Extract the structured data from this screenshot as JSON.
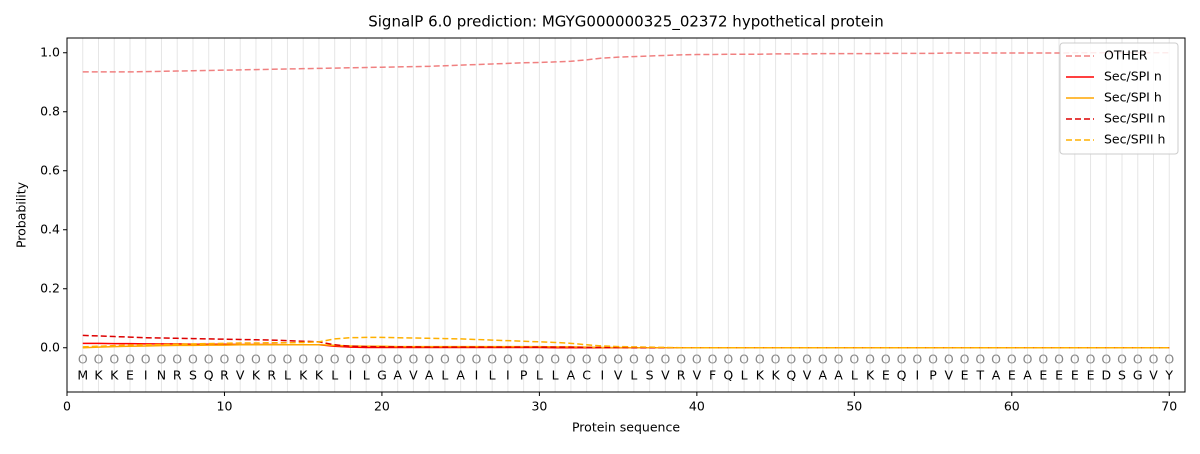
{
  "chart_data": {
    "type": "line",
    "title": "SignalP 6.0 prediction: MGYG000000325_02372 hypothetical protein",
    "x_label": "Protein sequence",
    "y_label": "Probability",
    "x": [
      1,
      2,
      3,
      4,
      5,
      6,
      7,
      8,
      9,
      10,
      11,
      12,
      13,
      14,
      15,
      16,
      17,
      18,
      19,
      20,
      21,
      22,
      23,
      24,
      25,
      26,
      27,
      28,
      29,
      30,
      31,
      32,
      33,
      34,
      35,
      36,
      37,
      38,
      39,
      40,
      41,
      42,
      43,
      44,
      45,
      46,
      47,
      48,
      49,
      50,
      51,
      52,
      53,
      54,
      55,
      56,
      57,
      58,
      59,
      60,
      61,
      62,
      63,
      64,
      65,
      66,
      67,
      68,
      69,
      70
    ],
    "sequence": [
      "M",
      "K",
      "K",
      "E",
      "I",
      "N",
      "R",
      "S",
      "Q",
      "R",
      "V",
      "K",
      "R",
      "L",
      "K",
      "K",
      "L",
      "I",
      "L",
      "G",
      "A",
      "V",
      "A",
      "L",
      "A",
      "I",
      "L",
      "I",
      "P",
      "L",
      "L",
      "A",
      "C",
      "I",
      "V",
      "L",
      "S",
      "V",
      "R",
      "V",
      "F",
      "Q",
      "L",
      "K",
      "K",
      "Q",
      "V",
      "A",
      "A",
      "L",
      "K",
      "E",
      "Q",
      "I",
      "P",
      "V",
      "E",
      "T",
      "A",
      "E",
      "A",
      "E",
      "E",
      "E",
      "E",
      "D",
      "S",
      "G",
      "V",
      "Y"
    ],
    "predicted_labels": [
      "O",
      "O",
      "O",
      "O",
      "O",
      "O",
      "O",
      "O",
      "O",
      "O",
      "O",
      "O",
      "O",
      "O",
      "O",
      "O",
      "O",
      "O",
      "O",
      "O",
      "O",
      "O",
      "O",
      "O",
      "O",
      "O",
      "O",
      "O",
      "O",
      "O",
      "O",
      "O",
      "O",
      "O",
      "O",
      "O",
      "O",
      "O",
      "O",
      "O",
      "O",
      "O",
      "O",
      "O",
      "O",
      "O",
      "O",
      "O",
      "O",
      "O",
      "O",
      "O",
      "O",
      "O",
      "O",
      "O",
      "O",
      "O",
      "O",
      "O",
      "O",
      "O",
      "O",
      "O",
      "O",
      "O",
      "O",
      "O",
      "O",
      "O"
    ],
    "series": [
      {
        "name": "OTHER",
        "color": "#f08080",
        "linestyle": "dashed",
        "values": [
          0.935,
          0.935,
          0.935,
          0.935,
          0.936,
          0.937,
          0.938,
          0.939,
          0.94,
          0.941,
          0.942,
          0.943,
          0.944,
          0.945,
          0.946,
          0.947,
          0.948,
          0.949,
          0.95,
          0.951,
          0.952,
          0.953,
          0.954,
          0.956,
          0.958,
          0.96,
          0.962,
          0.964,
          0.966,
          0.967,
          0.969,
          0.971,
          0.976,
          0.982,
          0.985,
          0.987,
          0.989,
          0.991,
          0.993,
          0.994,
          0.994,
          0.995,
          0.995,
          0.995,
          0.996,
          0.996,
          0.996,
          0.997,
          0.997,
          0.997,
          0.997,
          0.998,
          0.998,
          0.998,
          0.998,
          0.999,
          0.999,
          0.999,
          0.999,
          0.999,
          0.999,
          0.999,
          0.999,
          1.0,
          1.0,
          1.0,
          1.0,
          1.0,
          1.0,
          1.0
        ]
      },
      {
        "name": "Sec/SPI n",
        "color": "#ff0000",
        "linestyle": "solid",
        "values": [
          0.015,
          0.015,
          0.014,
          0.014,
          0.013,
          0.013,
          0.013,
          0.012,
          0.012,
          0.012,
          0.011,
          0.011,
          0.011,
          0.01,
          0.01,
          0.01,
          0.005,
          0.002,
          0.001,
          0.001,
          0.001,
          0.001,
          0.001,
          0.001,
          0.001,
          0.001,
          0.001,
          0.001,
          0.001,
          0.001,
          0,
          0,
          0,
          0,
          0,
          0,
          0,
          0,
          0,
          0,
          0,
          0,
          0,
          0,
          0,
          0,
          0,
          0,
          0,
          0,
          0,
          0,
          0,
          0,
          0,
          0,
          0,
          0,
          0,
          0,
          0,
          0,
          0,
          0,
          0,
          0,
          0,
          0,
          0,
          0
        ]
      },
      {
        "name": "Sec/SPI h",
        "color": "#ffa500",
        "linestyle": "solid",
        "values": [
          0,
          0.002,
          0.004,
          0.005,
          0.006,
          0.007,
          0.008,
          0.008,
          0.009,
          0.009,
          0.01,
          0.01,
          0.01,
          0.01,
          0.01,
          0.01,
          0.008,
          0.006,
          0.005,
          0.005,
          0.004,
          0.004,
          0.004,
          0.004,
          0.004,
          0.004,
          0.004,
          0.004,
          0.004,
          0.004,
          0.003,
          0.003,
          0.002,
          0.001,
          0.001,
          0,
          0,
          0,
          0,
          0,
          0,
          0,
          0,
          0,
          0,
          0,
          0,
          0,
          0,
          0,
          0,
          0,
          0,
          0,
          0,
          0,
          0,
          0,
          0,
          0,
          0,
          0,
          0,
          0,
          0,
          0,
          0,
          0,
          0,
          0
        ]
      },
      {
        "name": "Sec/SPII n",
        "color": "#dd0000",
        "linestyle": "dashed",
        "values": [
          0.042,
          0.04,
          0.038,
          0.036,
          0.034,
          0.033,
          0.032,
          0.031,
          0.03,
          0.029,
          0.028,
          0.027,
          0.026,
          0.024,
          0.022,
          0.02,
          0.01,
          0.005,
          0.004,
          0.003,
          0.003,
          0.003,
          0.002,
          0.002,
          0.002,
          0.002,
          0.002,
          0.002,
          0.002,
          0.002,
          0.002,
          0.002,
          0.001,
          0.001,
          0.001,
          0,
          0,
          0,
          0,
          0,
          0,
          0,
          0,
          0,
          0,
          0,
          0,
          0,
          0,
          0,
          0,
          0,
          0,
          0,
          0,
          0,
          0,
          0,
          0,
          0,
          0,
          0,
          0,
          0,
          0,
          0,
          0,
          0,
          0,
          0
        ]
      },
      {
        "name": "Sec/SPII h",
        "color": "#ffb000",
        "linestyle": "dashed",
        "values": [
          0.003,
          0.005,
          0.007,
          0.009,
          0.01,
          0.011,
          0.012,
          0.013,
          0.014,
          0.015,
          0.016,
          0.016,
          0.017,
          0.017,
          0.018,
          0.02,
          0.03,
          0.034,
          0.035,
          0.035,
          0.034,
          0.033,
          0.032,
          0.031,
          0.03,
          0.028,
          0.026,
          0.024,
          0.022,
          0.02,
          0.018,
          0.015,
          0.01,
          0.006,
          0.004,
          0.003,
          0.002,
          0.001,
          0,
          0,
          0,
          0,
          0,
          0,
          0,
          0,
          0,
          0,
          0,
          0,
          0,
          0,
          0,
          0,
          0,
          0,
          0,
          0,
          0,
          0,
          0,
          0,
          0,
          0,
          0,
          0,
          0,
          0,
          0,
          0
        ]
      }
    ],
    "xlim": [
      0,
      71
    ],
    "ylim": [
      -0.15,
      1.05
    ],
    "xticks": [
      0,
      10,
      20,
      30,
      40,
      50,
      60,
      70
    ],
    "yticks": [
      {
        "value": 0,
        "label": "0.0"
      },
      0.2,
      0.4,
      0.6,
      0.8,
      {
        "value": 1,
        "label": "1.0"
      }
    ],
    "legend": "upper right"
  }
}
